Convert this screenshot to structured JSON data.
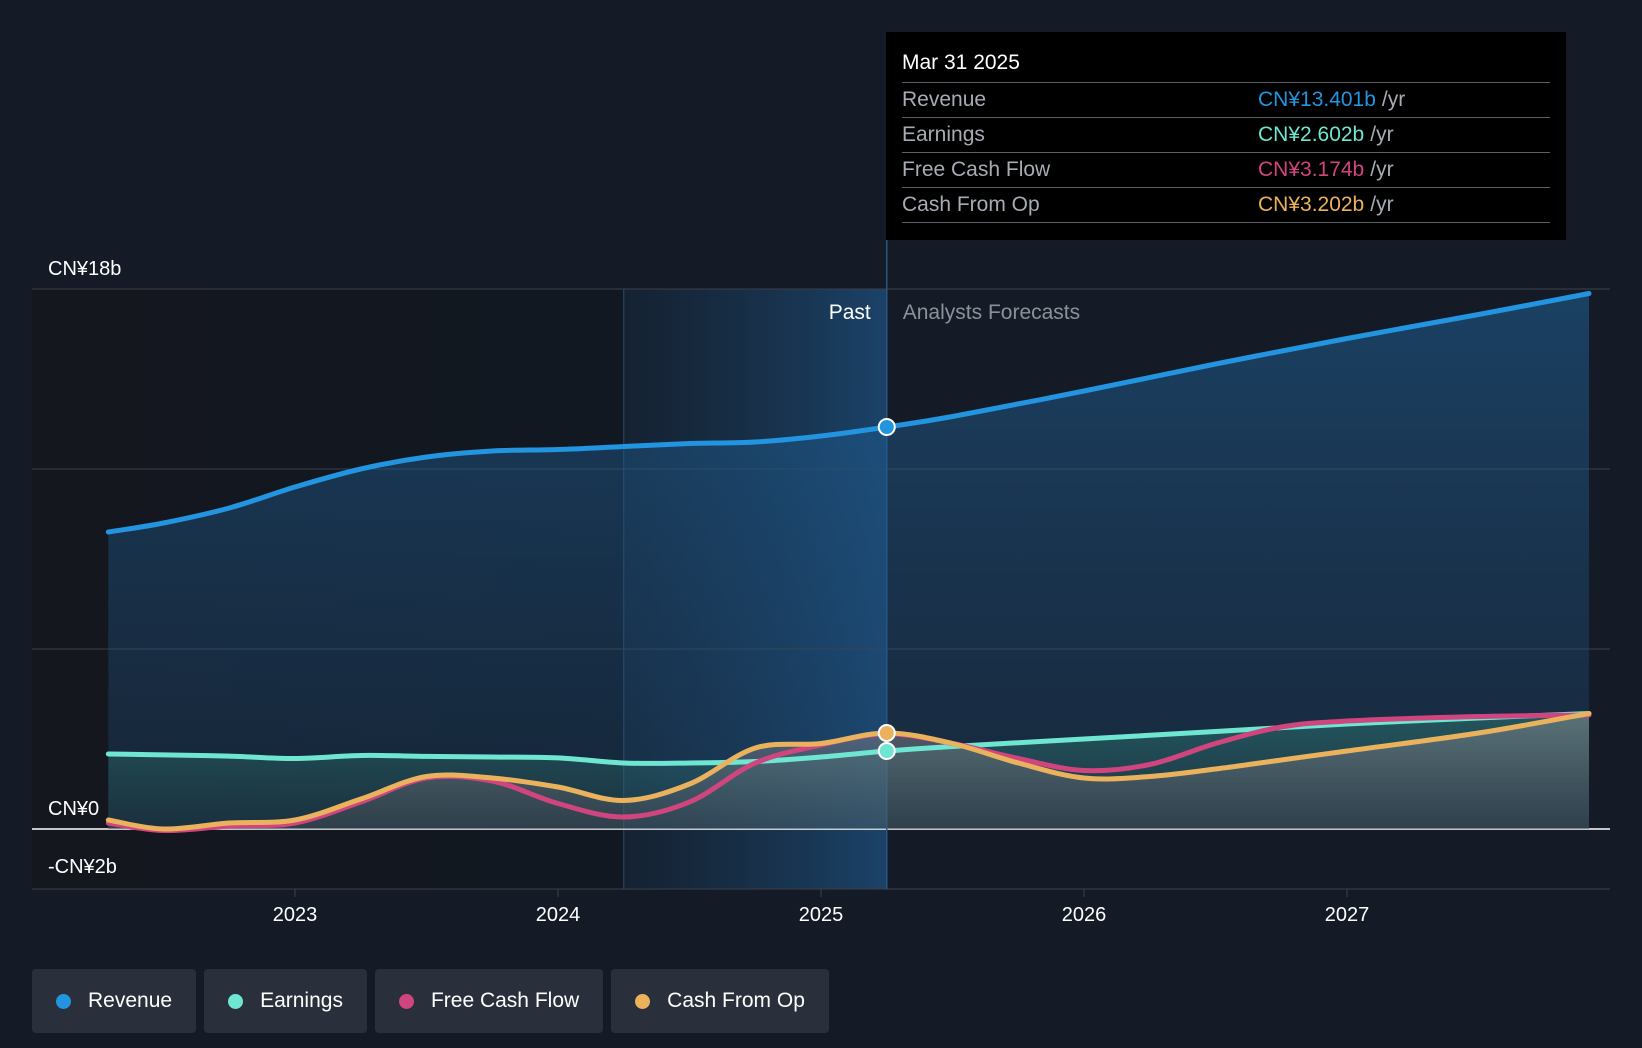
{
  "tooltip": {
    "date": "Mar 31 2025",
    "rows": [
      {
        "name": "Revenue",
        "value": "CN¥13.401b",
        "unit": "/yr",
        "color": "#2394df"
      },
      {
        "name": "Earnings",
        "value": "CN¥2.602b",
        "unit": "/yr",
        "color": "#6ee6d1"
      },
      {
        "name": "Free Cash Flow",
        "value": "CN¥3.174b",
        "unit": "/yr",
        "color": "#d1457f"
      },
      {
        "name": "Cash From Op",
        "value": "CN¥3.202b",
        "unit": "/yr",
        "color": "#ebb25e"
      }
    ]
  },
  "legend": [
    {
      "label": "Revenue",
      "color": "#2394df"
    },
    {
      "label": "Earnings",
      "color": "#6ee6d1"
    },
    {
      "label": "Free Cash Flow",
      "color": "#d1457f"
    },
    {
      "label": "Cash From Op",
      "color": "#ebb25e"
    }
  ],
  "chart_data": {
    "type": "line",
    "title": "",
    "xlabel": "",
    "ylabel": "",
    "ylim": [
      -2,
      18
    ],
    "xlim": [
      2022.05,
      2027.92
    ],
    "y_tick_labels": [
      {
        "value": 18,
        "label": "CN¥18b"
      },
      {
        "value": 0,
        "label": "CN¥0"
      },
      {
        "value": -2,
        "label": "-CN¥2b"
      }
    ],
    "x_ticks": [
      2023,
      2024,
      2025,
      2026,
      2027
    ],
    "x_tick_labels": [
      "2023",
      "2024",
      "2025",
      "2026",
      "2027"
    ],
    "past_label": "Past",
    "forecast_label": "Analysts Forecasts",
    "divider_x": 2025.25,
    "highlight_start_x": 2024.25,
    "series": [
      {
        "name": "Revenue",
        "color": "#2394df",
        "x": [
          2022.29,
          2022.5,
          2022.75,
          2023.0,
          2023.25,
          2023.5,
          2023.75,
          2024.0,
          2024.25,
          2024.5,
          2024.75,
          2025.0,
          2025.25,
          2025.5,
          2026.0,
          2026.5,
          2027.0,
          2027.5,
          2027.92
        ],
        "values": [
          9.9,
          10.2,
          10.7,
          11.4,
          12.0,
          12.4,
          12.6,
          12.65,
          12.75,
          12.85,
          12.9,
          13.1,
          13.4,
          13.75,
          14.6,
          15.5,
          16.35,
          17.15,
          17.85
        ]
      },
      {
        "name": "Earnings",
        "color": "#6ee6d1",
        "x": [
          2022.29,
          2022.5,
          2022.75,
          2023.0,
          2023.25,
          2023.5,
          2023.75,
          2024.0,
          2024.25,
          2024.5,
          2024.75,
          2025.0,
          2025.25,
          2025.5,
          2026.0,
          2026.5,
          2027.0,
          2027.5,
          2027.92
        ],
        "values": [
          2.5,
          2.47,
          2.43,
          2.35,
          2.45,
          2.42,
          2.4,
          2.37,
          2.2,
          2.2,
          2.25,
          2.4,
          2.6,
          2.75,
          3.0,
          3.25,
          3.5,
          3.7,
          3.85
        ]
      },
      {
        "name": "Free Cash Flow",
        "color": "#d1457f",
        "x": [
          2022.29,
          2022.5,
          2022.75,
          2023.0,
          2023.25,
          2023.5,
          2023.75,
          2024.0,
          2024.25,
          2024.5,
          2024.75,
          2025.0,
          2025.25,
          2025.5,
          2025.75,
          2026.0,
          2026.25,
          2026.5,
          2026.75,
          2027.0,
          2027.5,
          2027.92
        ],
        "values": [
          0.2,
          -0.05,
          0.1,
          0.2,
          0.9,
          1.7,
          1.6,
          0.85,
          0.4,
          0.9,
          2.2,
          2.8,
          3.17,
          2.85,
          2.35,
          1.95,
          2.15,
          2.85,
          3.4,
          3.6,
          3.75,
          3.8
        ]
      },
      {
        "name": "Cash From Op",
        "color": "#ebb25e",
        "x": [
          2022.29,
          2022.5,
          2022.75,
          2023.0,
          2023.25,
          2023.5,
          2023.75,
          2024.0,
          2024.25,
          2024.5,
          2024.75,
          2025.0,
          2025.25,
          2025.5,
          2025.75,
          2026.0,
          2026.25,
          2026.5,
          2026.75,
          2027.0,
          2027.5,
          2027.92
        ],
        "values": [
          0.3,
          0.0,
          0.2,
          0.3,
          1.0,
          1.75,
          1.7,
          1.4,
          0.95,
          1.5,
          2.7,
          2.85,
          3.2,
          2.85,
          2.2,
          1.7,
          1.75,
          2.0,
          2.3,
          2.6,
          3.2,
          3.85
        ]
      }
    ]
  }
}
